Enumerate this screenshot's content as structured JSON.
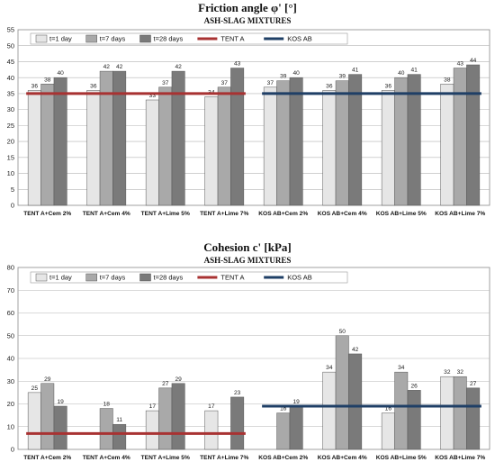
{
  "chart_data": [
    {
      "type": "bar",
      "title": "Friction angle φ' [°]",
      "subtitle": "ASH-SLAG MIXTURES",
      "xlabel": "",
      "ylabel": "",
      "ylim": [
        0,
        55
      ],
      "ytick_step": 5,
      "grid": true,
      "legend": "top",
      "categories": [
        "TENT A+Cem 2%",
        "TENT A+Cem 4%",
        "TENT A+Lime 5%",
        "TENT A+Lime 7%",
        "KOS AB+Cem 2%",
        "KOS AB+Cem 4%",
        "KOS AB+Lime 5%",
        "KOS AB+Lime 7%"
      ],
      "series": [
        {
          "name": "t=1 day",
          "values": [
            36,
            36,
            33,
            34,
            37,
            36,
            36,
            38
          ],
          "color": "#e6e6e6"
        },
        {
          "name": "t=7 days",
          "values": [
            38,
            42,
            37,
            37,
            39,
            39,
            40,
            43
          ],
          "color": "#a9a9a9"
        },
        {
          "name": "t=28 days",
          "values": [
            40,
            42,
            42,
            43,
            40,
            41,
            41,
            44
          ],
          "color": "#7a7a7a"
        }
      ],
      "reference_lines": [
        {
          "name": "TENT A",
          "value": 35,
          "from_category": 0,
          "to_category": 3,
          "color": "#a83232"
        },
        {
          "name": "KOS AB",
          "value": 35,
          "from_category": 4,
          "to_category": 7,
          "color": "#1f3f66"
        }
      ]
    },
    {
      "type": "bar",
      "title": "Cohesion c' [kPa]",
      "subtitle": "ASH-SLAG MIXTURES",
      "xlabel": "",
      "ylabel": "",
      "ylim": [
        0,
        80
      ],
      "ytick_step": 10,
      "grid": true,
      "legend": "top",
      "categories": [
        "TENT A+Cem 2%",
        "TENT A+Cem 4%",
        "TENT A+Lime 5%",
        "TENT A+Lime 7%",
        "KOS AB+Cem 2%",
        "KOS AB+Cem 4%",
        "KOS AB+Lime 5%",
        "KOS AB+Lime 7%"
      ],
      "series": [
        {
          "name": "t=1 day",
          "values": [
            25,
            null,
            17,
            17,
            null,
            34,
            16,
            32
          ],
          "color": "#e6e6e6"
        },
        {
          "name": "t=7 days",
          "values": [
            29,
            18,
            27,
            null,
            16,
            50,
            34,
            32
          ],
          "color": "#a9a9a9"
        },
        {
          "name": "t=28 days",
          "values": [
            19,
            11,
            29,
            23,
            19,
            42,
            26,
            27
          ],
          "color": "#7a7a7a"
        }
      ],
      "reference_lines": [
        {
          "name": "TENT A",
          "value": 7,
          "from_category": 0,
          "to_category": 3,
          "color": "#a83232"
        },
        {
          "name": "KOS AB",
          "value": 19,
          "from_category": 4,
          "to_category": 7,
          "color": "#1f3f66"
        }
      ]
    }
  ]
}
